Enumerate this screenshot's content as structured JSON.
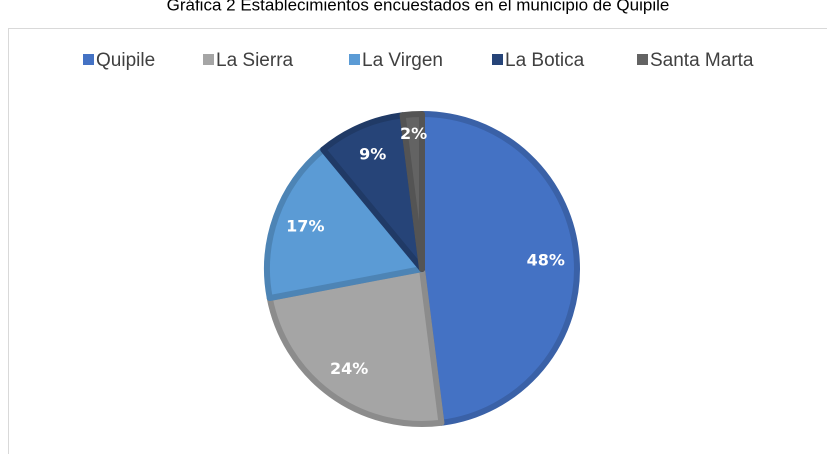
{
  "chart_data": {
    "type": "pie",
    "title": "Gráfica 2 Establecimientos encuestados en el municipio de Quipile",
    "categories": [
      "Quipile",
      "La Sierra",
      "La Virgen",
      "La Botica",
      "Santa Marta"
    ],
    "values": [
      48,
      24,
      17,
      9,
      2
    ],
    "value_labels": [
      "48%",
      "24%",
      "17%",
      "9%",
      "2%"
    ],
    "colors": [
      "#4472c4",
      "#a5a5a5",
      "#5b9bd5",
      "#264478",
      "#636363"
    ],
    "legend": "top"
  }
}
